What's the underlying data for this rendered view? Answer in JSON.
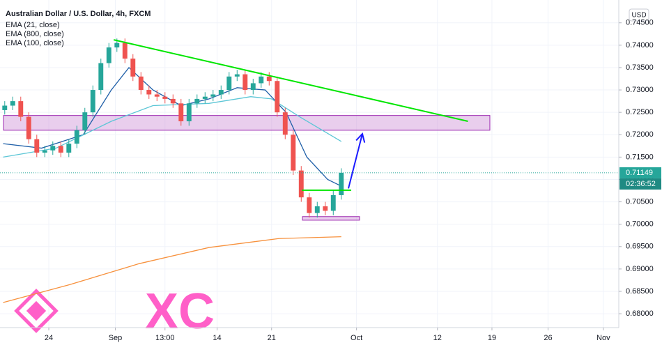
{
  "chart_data": {
    "type": "candlestick",
    "title": "Australian Dollar / U.S. Dollar, 4h, FXCM",
    "currency": "USD",
    "watermark": "XC",
    "xlim": [
      -6.09,
      71.13
    ],
    "ylim": [
      0.6769,
      0.7501
    ],
    "grid": true,
    "up_color": "#26a69a",
    "down_color": "#ef5350",
    "xticks": [
      {
        "value": 0,
        "label": "24"
      },
      {
        "value": 8.3,
        "label": "Sep"
      },
      {
        "value": 14.5,
        "label": "13:00"
      },
      {
        "value": 21.0,
        "label": "14"
      },
      {
        "value": 27.8,
        "label": "21"
      },
      {
        "value": 38.4,
        "label": "Oct"
      },
      {
        "value": 48.5,
        "label": "12"
      },
      {
        "value": 55.3,
        "label": "19"
      },
      {
        "value": 62.3,
        "label": "26"
      },
      {
        "value": 69.2,
        "label": "Nov"
      }
    ],
    "yticks": [
      {
        "value": 0.68,
        "label": "0.68000"
      },
      {
        "value": 0.685,
        "label": "0.68500"
      },
      {
        "value": 0.69,
        "label": "0.69000"
      },
      {
        "value": 0.695,
        "label": "0.69500"
      },
      {
        "value": 0.7,
        "label": "0.70000"
      },
      {
        "value": 0.705,
        "label": "0.70500"
      },
      {
        "value": 0.71,
        "label": "0.71000"
      },
      {
        "value": 0.715,
        "label": "0.71500"
      },
      {
        "value": 0.72,
        "label": "0.72000"
      },
      {
        "value": 0.725,
        "label": "0.72500"
      },
      {
        "value": 0.73,
        "label": "0.73000"
      },
      {
        "value": 0.735,
        "label": "0.73500"
      },
      {
        "value": 0.74,
        "label": "0.74000"
      },
      {
        "value": 0.745,
        "label": "0.74500"
      }
    ],
    "x": [
      -5.5,
      -4.5,
      -3.5,
      -2.5,
      -1.5,
      -0.5,
      0.5,
      1.5,
      2.5,
      3.5,
      4.5,
      5.5,
      6.5,
      7.5,
      8.5,
      9.5,
      10.5,
      11.5,
      12.5,
      13.5,
      14.5,
      15.5,
      16.5,
      17.5,
      18.5,
      19.5,
      20.5,
      21.5,
      22.5,
      23.5,
      24.5,
      25.5,
      26.5,
      27.5,
      28.5,
      29.5,
      30.5,
      31.5,
      32.5,
      33.5,
      34.5,
      35.5,
      36.5
    ],
    "open": [
      0.7255,
      0.7265,
      0.7275,
      0.724,
      0.719,
      0.716,
      0.7165,
      0.7175,
      0.716,
      0.718,
      0.721,
      0.725,
      0.73,
      0.736,
      0.7395,
      0.7405,
      0.737,
      0.733,
      0.73,
      0.729,
      0.7285,
      0.728,
      0.727,
      0.723,
      0.727,
      0.728,
      0.7285,
      0.729,
      0.73,
      0.733,
      0.7335,
      0.73,
      0.7315,
      0.733,
      0.732,
      0.725,
      0.72,
      0.712,
      0.706,
      0.7025,
      0.704,
      0.703,
      0.7065
    ],
    "high": [
      0.7275,
      0.7285,
      0.7285,
      0.725,
      0.72,
      0.7175,
      0.7185,
      0.7185,
      0.719,
      0.722,
      0.726,
      0.731,
      0.737,
      0.7405,
      0.7415,
      0.7415,
      0.738,
      0.734,
      0.731,
      0.73,
      0.7295,
      0.729,
      0.728,
      0.728,
      0.729,
      0.7295,
      0.73,
      0.731,
      0.734,
      0.7345,
      0.7345,
      0.7325,
      0.734,
      0.734,
      0.733,
      0.726,
      0.721,
      0.713,
      0.707,
      0.705,
      0.705,
      0.7075,
      0.7125
    ],
    "low": [
      0.7245,
      0.7255,
      0.723,
      0.718,
      0.715,
      0.715,
      0.7155,
      0.715,
      0.715,
      0.717,
      0.72,
      0.724,
      0.729,
      0.735,
      0.7385,
      0.736,
      0.732,
      0.729,
      0.728,
      0.7275,
      0.727,
      0.726,
      0.722,
      0.722,
      0.726,
      0.727,
      0.7275,
      0.728,
      0.729,
      0.732,
      0.729,
      0.729,
      0.7305,
      0.731,
      0.724,
      0.719,
      0.711,
      0.705,
      0.7015,
      0.7015,
      0.702,
      0.702,
      0.7055
    ],
    "close": [
      0.7265,
      0.7275,
      0.724,
      0.719,
      0.716,
      0.7165,
      0.7175,
      0.716,
      0.718,
      0.721,
      0.725,
      0.73,
      0.736,
      0.7395,
      0.7405,
      0.737,
      0.733,
      0.73,
      0.729,
      0.7285,
      0.728,
      0.727,
      0.723,
      0.727,
      0.728,
      0.7285,
      0.729,
      0.73,
      0.733,
      0.7335,
      0.73,
      0.7315,
      0.733,
      0.732,
      0.725,
      0.72,
      0.712,
      0.706,
      0.7025,
      0.704,
      0.703,
      0.7065,
      0.7115
    ],
    "series": [
      {
        "name": "EMA (21, close)",
        "color": "#1f5fa8",
        "x": [
          -5.7,
          -0.9,
          4.3,
          7.8,
          10.0,
          13.0,
          16.5,
          20.0,
          23.5,
          27.0,
          29.6,
          32.2,
          34.8,
          36.5
        ],
        "values": [
          0.718,
          0.717,
          0.72,
          0.73,
          0.735,
          0.73,
          0.7265,
          0.728,
          0.7305,
          0.73,
          0.725,
          0.715,
          0.71,
          0.7085
        ]
      },
      {
        "name": "EMA (800, close)",
        "color": "#f7913d",
        "x": [
          -5.7,
          2.6,
          11.3,
          20.0,
          28.7,
          36.5
        ],
        "values": [
          0.6825,
          0.6865,
          0.6912,
          0.6948,
          0.6968,
          0.6972
        ]
      },
      {
        "name": "EMA (100, close)",
        "color": "#5cc6d6",
        "x": [
          -5.7,
          0.9,
          7.8,
          13.0,
          20.0,
          25.2,
          27.8,
          31.3,
          36.5
        ],
        "values": [
          0.715,
          0.717,
          0.723,
          0.7265,
          0.727,
          0.7285,
          0.728,
          0.724,
          0.7185
        ]
      }
    ],
    "last_price": 0.71149,
    "countdown": "02:36:52",
    "drawings": {
      "trendline": {
        "x": [
          8.1,
          52.3
        ],
        "y": [
          0.7412,
          0.723
        ],
        "color": "#00e600"
      },
      "zones": [
        {
          "x": [
            -5.65,
            55.04
          ],
          "y": [
            0.721,
            0.7243
          ],
          "color": "#ce93d8"
        },
        {
          "x": [
            31.65,
            38.78
          ],
          "y": [
            0.7009,
            0.7017
          ],
          "color": "#ce93d8"
        }
      ],
      "neckline": {
        "x": [
          31.57,
          37.74
        ],
        "y": [
          0.7076,
          0.7076
        ],
        "color": "#00e600"
      },
      "arrow": {
        "x": [
          37.39,
          39.13
        ],
        "y": [
          0.708,
          0.7202
        ],
        "color": "#1a1aff"
      }
    }
  }
}
